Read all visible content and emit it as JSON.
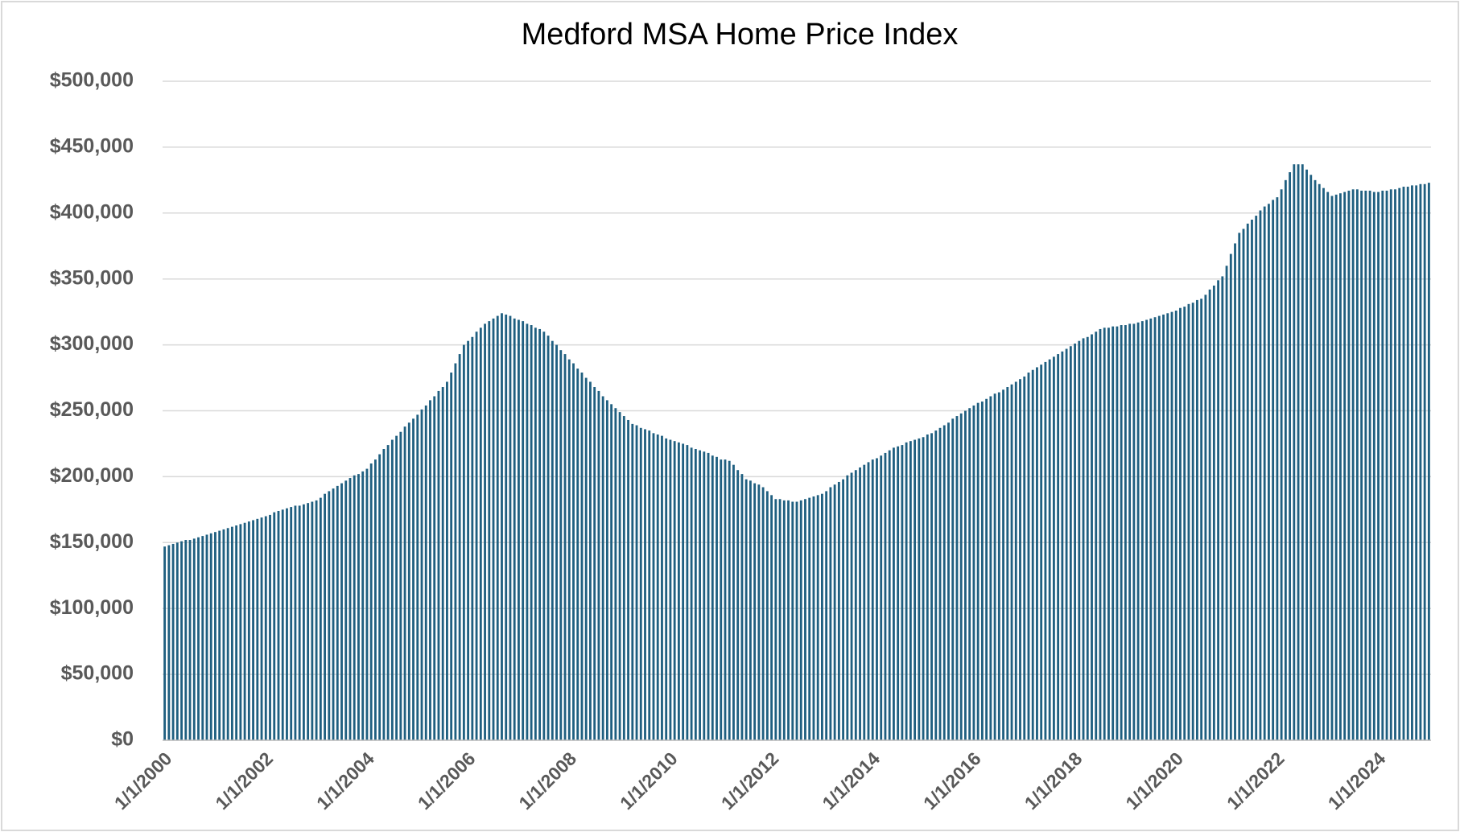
{
  "chart_data": {
    "type": "bar",
    "title": "Medford MSA Home Price Index",
    "categories": [
      "1/1/2000",
      null,
      null,
      null,
      null,
      null,
      null,
      null,
      null,
      null,
      null,
      null,
      null,
      null,
      null,
      null,
      null,
      null,
      null,
      null,
      null,
      null,
      null,
      null,
      "1/1/2002",
      null,
      null,
      null,
      null,
      null,
      null,
      null,
      null,
      null,
      null,
      null,
      null,
      null,
      null,
      null,
      null,
      null,
      null,
      null,
      null,
      null,
      null,
      null,
      "1/1/2004",
      null,
      null,
      null,
      null,
      null,
      null,
      null,
      null,
      null,
      null,
      null,
      null,
      null,
      null,
      null,
      null,
      null,
      null,
      null,
      null,
      null,
      null,
      null,
      "1/1/2006",
      null,
      null,
      null,
      null,
      null,
      null,
      null,
      null,
      null,
      null,
      null,
      null,
      null,
      null,
      null,
      null,
      null,
      null,
      null,
      null,
      null,
      null,
      null,
      "1/1/2008",
      null,
      null,
      null,
      null,
      null,
      null,
      null,
      null,
      null,
      null,
      null,
      null,
      null,
      null,
      null,
      null,
      null,
      null,
      null,
      null,
      null,
      null,
      null,
      "1/1/2010",
      null,
      null,
      null,
      null,
      null,
      null,
      null,
      null,
      null,
      null,
      null,
      null,
      null,
      null,
      null,
      null,
      null,
      null,
      null,
      null,
      null,
      null,
      null,
      "1/1/2012",
      null,
      null,
      null,
      null,
      null,
      null,
      null,
      null,
      null,
      null,
      null,
      null,
      null,
      null,
      null,
      null,
      null,
      null,
      null,
      null,
      null,
      null,
      null,
      "1/1/2014",
      null,
      null,
      null,
      null,
      null,
      null,
      null,
      null,
      null,
      null,
      null,
      null,
      null,
      null,
      null,
      null,
      null,
      null,
      null,
      null,
      null,
      null,
      null,
      "1/1/2016",
      null,
      null,
      null,
      null,
      null,
      null,
      null,
      null,
      null,
      null,
      null,
      null,
      null,
      null,
      null,
      null,
      null,
      null,
      null,
      null,
      null,
      null,
      null,
      "1/1/2018",
      null,
      null,
      null,
      null,
      null,
      null,
      null,
      null,
      null,
      null,
      null,
      null,
      null,
      null,
      null,
      null,
      null,
      null,
      null,
      null,
      null,
      null,
      null,
      "1/1/2020",
      null,
      null,
      null,
      null,
      null,
      null,
      null,
      null,
      null,
      null,
      null,
      null,
      null,
      null,
      null,
      null,
      null,
      null,
      null,
      null,
      null,
      null,
      null,
      "1/1/2022",
      null,
      null,
      null,
      null,
      null,
      null,
      null,
      null,
      null,
      null,
      null,
      null,
      null,
      null,
      null,
      null,
      null,
      null,
      null,
      null,
      null,
      null,
      null,
      "1/1/2024",
      null,
      null,
      null,
      null,
      null,
      null,
      null,
      null,
      null,
      null,
      null,
      null
    ],
    "values": [
      147000,
      148000,
      149000,
      150000,
      151000,
      152000,
      152000,
      153000,
      154000,
      155000,
      156000,
      157000,
      158000,
      159000,
      160000,
      161000,
      162000,
      163000,
      164000,
      165000,
      166000,
      167000,
      168000,
      169000,
      170000,
      171000,
      173000,
      174000,
      175000,
      176000,
      177000,
      178000,
      178000,
      179000,
      180000,
      181000,
      182000,
      184000,
      187000,
      189000,
      191000,
      193000,
      195000,
      197000,
      199000,
      201000,
      202000,
      204000,
      206000,
      210000,
      213000,
      217000,
      221000,
      224000,
      228000,
      231000,
      234000,
      238000,
      241000,
      244000,
      247000,
      251000,
      254000,
      258000,
      261000,
      265000,
      268000,
      272000,
      279000,
      286000,
      293000,
      300000,
      303000,
      306000,
      310000,
      313000,
      316000,
      318000,
      320000,
      322000,
      324000,
      323000,
      322000,
      320000,
      319000,
      318000,
      316000,
      315000,
      313000,
      312000,
      310000,
      307000,
      303000,
      300000,
      296000,
      293000,
      289000,
      286000,
      282000,
      279000,
      275000,
      272000,
      268000,
      265000,
      261000,
      258000,
      255000,
      252000,
      249000,
      246000,
      243000,
      240000,
      239000,
      237000,
      236000,
      235000,
      233000,
      232000,
      231000,
      229000,
      228000,
      227000,
      226000,
      225000,
      224000,
      222000,
      221000,
      220000,
      219000,
      218000,
      216000,
      215000,
      213000,
      213000,
      212000,
      209000,
      205000,
      202000,
      198000,
      197000,
      195000,
      194000,
      192000,
      189000,
      186000,
      183000,
      183000,
      182000,
      182000,
      181000,
      181000,
      182000,
      183000,
      184000,
      185000,
      186000,
      187000,
      189000,
      192000,
      194000,
      196000,
      198000,
      201000,
      203000,
      205000,
      207000,
      209000,
      211000,
      213000,
      214000,
      216000,
      218000,
      220000,
      222000,
      223000,
      224000,
      226000,
      227000,
      228000,
      229000,
      230000,
      232000,
      233000,
      235000,
      237000,
      239000,
      241000,
      244000,
      246000,
      248000,
      250000,
      252000,
      254000,
      256000,
      257000,
      259000,
      261000,
      263000,
      264000,
      266000,
      268000,
      270000,
      272000,
      274000,
      276000,
      279000,
      281000,
      283000,
      285000,
      287000,
      289000,
      291000,
      293000,
      295000,
      297000,
      299000,
      301000,
      303000,
      305000,
      306000,
      308000,
      310000,
      312000,
      313000,
      313000,
      314000,
      314000,
      315000,
      315000,
      316000,
      316000,
      317000,
      318000,
      319000,
      320000,
      321000,
      322000,
      323000,
      324000,
      325000,
      326000,
      328000,
      329000,
      331000,
      332000,
      334000,
      335000,
      338000,
      342000,
      345000,
      349000,
      352000,
      360000,
      369000,
      377000,
      385000,
      388000,
      392000,
      395000,
      398000,
      402000,
      405000,
      407000,
      410000,
      412000,
      418000,
      425000,
      431000,
      437000,
      437000,
      437000,
      433000,
      429000,
      425000,
      422000,
      419000,
      416000,
      413000,
      414000,
      415000,
      416000,
      417000,
      418000,
      418000,
      417000,
      417000,
      417000,
      416000,
      416000,
      417000,
      417000,
      418000,
      418000,
      419000,
      420000,
      420000,
      421000,
      421000,
      422000,
      422000,
      423000
    ],
    "color": "#1f5f80",
    "ylim": [
      0,
      500000
    ],
    "yticks": [
      {
        "value": 0,
        "label": "$0"
      },
      {
        "value": 50000,
        "label": "$50,000"
      },
      {
        "value": 100000,
        "label": "$100,000"
      },
      {
        "value": 150000,
        "label": "$150,000"
      },
      {
        "value": 200000,
        "label": "$200,000"
      },
      {
        "value": 250000,
        "label": "$250,000"
      },
      {
        "value": 300000,
        "label": "$300,000"
      },
      {
        "value": 350000,
        "label": "$350,000"
      },
      {
        "value": 400000,
        "label": "$400,000"
      },
      {
        "value": 450000,
        "label": "$450,000"
      },
      {
        "value": 500000,
        "label": "$500,000"
      }
    ],
    "grid": true
  }
}
